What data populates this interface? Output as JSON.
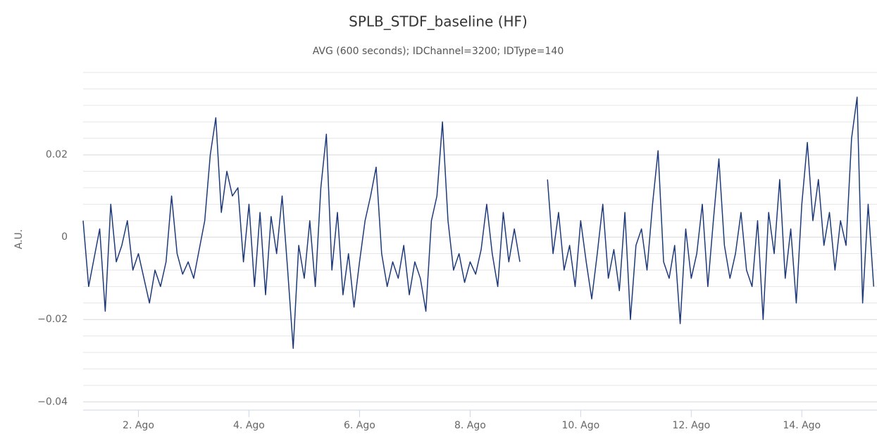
{
  "chart_data": {
    "type": "line",
    "title": "SPLB_STDF_baseline (HF)",
    "subtitle": "AVG (600 seconds); IDChannel=3200; IDType=140",
    "y_label": "A.U.",
    "xlim": [
      1,
      15.36
    ],
    "xticks": [
      {
        "value": 2,
        "label": "2. Ago"
      },
      {
        "value": 4,
        "label": "4. Ago"
      },
      {
        "value": 6,
        "label": "6. Ago"
      },
      {
        "value": 8,
        "label": "8. Ago"
      },
      {
        "value": 10,
        "label": "10. Ago"
      },
      {
        "value": 12,
        "label": "12. Ago"
      },
      {
        "value": 14,
        "label": "14. Ago"
      }
    ],
    "ylim": [
      -0.042,
      0.04
    ],
    "yticks": [
      {
        "value": -0.04,
        "label": "−0.04"
      },
      {
        "value": -0.02,
        "label": "−0.02"
      },
      0,
      0.02
    ],
    "minor_yticks": [
      -0.036,
      -0.032,
      -0.028,
      -0.024,
      -0.016,
      -0.012,
      -0.008,
      -0.004,
      0.004,
      0.008,
      0.012,
      0.016,
      0.024,
      0.028,
      0.032,
      0.036,
      0.04
    ],
    "grid": true,
    "x": [
      1.0,
      1.1,
      1.2,
      1.3,
      1.4,
      1.5,
      1.6,
      1.7,
      1.8,
      1.9,
      2.0,
      2.1,
      2.2,
      2.3,
      2.4,
      2.5,
      2.6,
      2.7,
      2.8,
      2.9,
      3.0,
      3.1,
      3.2,
      3.3,
      3.4,
      3.5,
      3.6,
      3.7,
      3.8,
      3.9,
      4.0,
      4.1,
      4.2,
      4.3,
      4.4,
      4.5,
      4.6,
      4.7,
      4.8,
      4.9,
      5.0,
      5.1,
      5.2,
      5.3,
      5.4,
      5.5,
      5.6,
      5.7,
      5.8,
      5.9,
      6.0,
      6.1,
      6.2,
      6.3,
      6.4,
      6.5,
      6.6,
      6.7,
      6.8,
      6.9,
      7.0,
      7.1,
      7.2,
      7.3,
      7.4,
      7.5,
      7.6,
      7.7,
      7.8,
      7.9,
      8.0,
      8.1,
      8.2,
      8.3,
      8.4,
      8.5,
      8.6,
      8.7,
      8.8,
      8.9,
      9.0,
      9.1,
      9.2,
      9.3,
      9.4,
      9.5,
      9.6,
      9.7,
      9.8,
      9.9,
      10.0,
      10.1,
      10.2,
      10.3,
      10.4,
      10.5,
      10.6,
      10.7,
      10.8,
      10.9,
      11.0,
      11.1,
      11.2,
      11.3,
      11.4,
      11.5,
      11.6,
      11.7,
      11.8,
      11.9,
      12.0,
      12.1,
      12.2,
      12.3,
      12.4,
      12.5,
      12.6,
      12.7,
      12.8,
      12.9,
      13.0,
      13.1,
      13.2,
      13.3,
      13.4,
      13.5,
      13.6,
      13.7,
      13.8,
      13.9,
      14.0,
      14.1,
      14.2,
      14.3,
      14.4,
      14.5,
      14.6,
      14.7,
      14.8,
      14.9,
      15.0,
      15.1,
      15.2,
      15.3
    ],
    "series": [
      {
        "color": "#1f3a7a",
        "values": [
          0.004,
          -0.012,
          -0.005,
          0.002,
          -0.018,
          0.008,
          -0.006,
          -0.002,
          0.004,
          -0.008,
          -0.004,
          -0.01,
          -0.016,
          -0.008,
          -0.012,
          -0.006,
          0.01,
          -0.004,
          -0.009,
          -0.006,
          -0.01,
          -0.003,
          0.004,
          0.02,
          0.029,
          0.006,
          0.016,
          0.01,
          0.012,
          -0.006,
          0.008,
          -0.012,
          0.006,
          -0.014,
          0.005,
          -0.004,
          0.01,
          -0.008,
          -0.027,
          -0.002,
          -0.01,
          0.004,
          -0.012,
          0.012,
          0.025,
          -0.008,
          0.006,
          -0.014,
          -0.004,
          -0.017,
          -0.006,
          0.004,
          0.01,
          0.017,
          -0.004,
          -0.012,
          -0.006,
          -0.01,
          -0.002,
          -0.014,
          -0.006,
          -0.01,
          -0.018,
          0.004,
          0.01,
          0.028,
          0.004,
          -0.008,
          -0.004,
          -0.011,
          -0.006,
          -0.009,
          -0.003,
          0.008,
          -0.004,
          -0.012,
          0.006,
          -0.006,
          0.002,
          -0.006,
          null,
          null,
          null,
          null,
          0.014,
          -0.004,
          0.006,
          -0.008,
          -0.002,
          -0.012,
          0.004,
          -0.006,
          -0.015,
          -0.004,
          0.008,
          -0.01,
          -0.003,
          -0.013,
          0.006,
          -0.02,
          -0.002,
          0.002,
          -0.008,
          0.008,
          0.021,
          -0.006,
          -0.01,
          -0.002,
          -0.021,
          0.002,
          -0.01,
          -0.004,
          0.008,
          -0.012,
          0.004,
          0.019,
          -0.002,
          -0.01,
          -0.004,
          0.006,
          -0.008,
          -0.012,
          0.004,
          -0.02,
          0.006,
          -0.004,
          0.014,
          -0.01,
          0.002,
          -0.016,
          0.008,
          0.023,
          0.004,
          0.014,
          -0.002,
          0.006,
          -0.008,
          0.004,
          -0.002,
          0.024,
          0.034,
          -0.016,
          0.008,
          -0.012
        ]
      }
    ]
  }
}
